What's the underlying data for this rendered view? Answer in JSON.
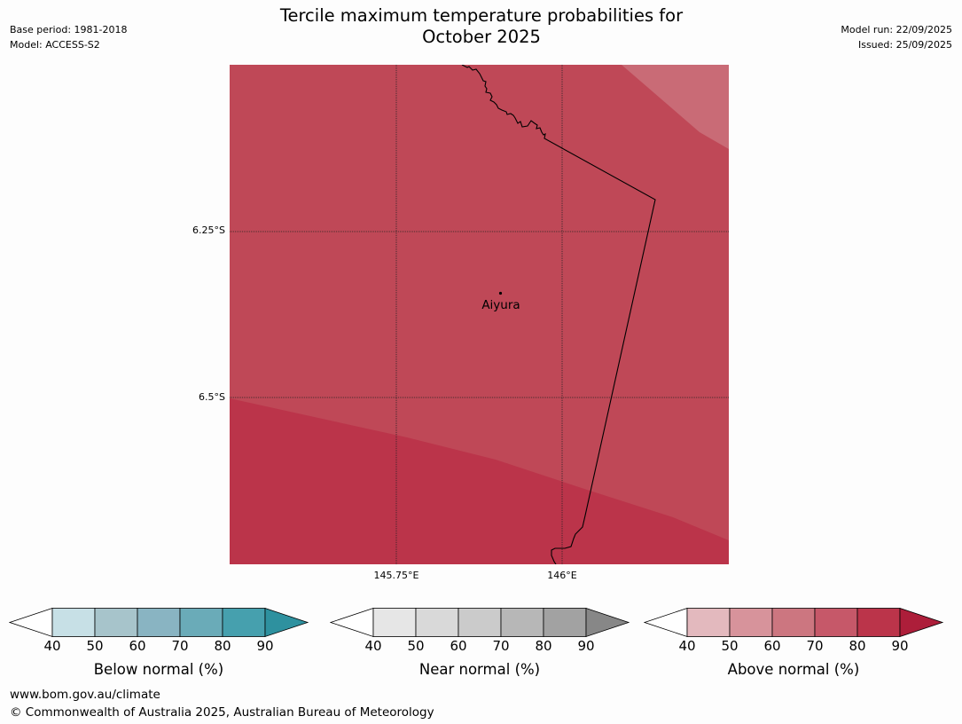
{
  "header": {
    "base_period": "Base period: 1981-2018",
    "model": "Model: ACCESS-S2",
    "title_line1": "Tercile maximum temperature probabilities for",
    "title_line2": "October 2025",
    "model_run": "Model run: 22/09/2025",
    "issued": "Issued: 25/09/2025"
  },
  "map": {
    "lat_labels": [
      "6.25°S",
      "6.5°S"
    ],
    "lon_labels": [
      "145.75°E",
      "146°E"
    ],
    "place_label": "Aiyura",
    "colors": {
      "base_fill": "#bf4857",
      "upper_right_fill": "#c96b76",
      "lower_fill": "#bb344a"
    }
  },
  "legend": {
    "tick_values": [
      "40",
      "50",
      "60",
      "70",
      "80",
      "90"
    ],
    "below": {
      "label": "Below normal (%)",
      "colors": [
        "#c7e0e6",
        "#a7c4cb",
        "#89b4c2",
        "#6aabb8",
        "#46a0ae",
        "#2e919f"
      ]
    },
    "near": {
      "label": "Near normal (%)",
      "colors": [
        "#e6e6e6",
        "#d9d9d9",
        "#cbcbcb",
        "#b7b7b7",
        "#a2a2a2",
        "#878787"
      ]
    },
    "above": {
      "label": "Above normal (%)",
      "colors": [
        "#e3b9be",
        "#d7939b",
        "#cc7680",
        "#c65869",
        "#bb344a",
        "#ad1e3a"
      ]
    }
  },
  "footer": {
    "url": "www.bom.gov.au/climate",
    "copyright": "© Commonwealth of Australia 2025, Australian Bureau of Meteorology"
  }
}
